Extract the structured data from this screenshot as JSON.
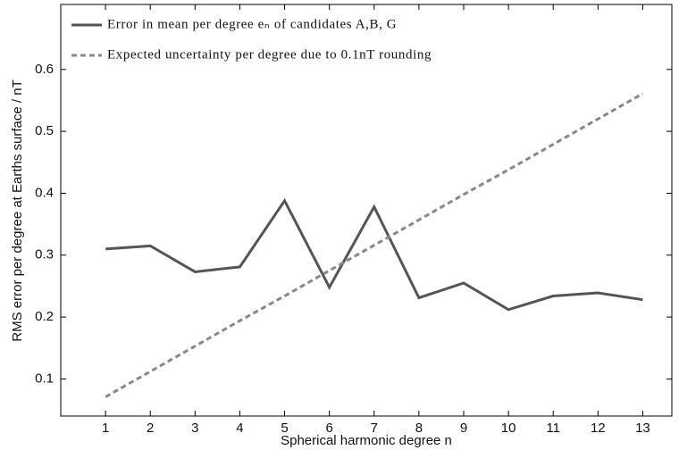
{
  "chart_data": {
    "type": "line",
    "x_label": "Spherical harmonic degree n",
    "y_label": "RMS error per degree at Earths surface / nT",
    "x": [
      1,
      2,
      3,
      4,
      5,
      6,
      7,
      8,
      9,
      10,
      11,
      12,
      13
    ],
    "series": [
      {
        "name": "Error in mean per degree eₙ of candidates A,B, G",
        "color": "#555555",
        "dash": "solid",
        "values": [
          0.31,
          0.315,
          0.273,
          0.281,
          0.388,
          0.248,
          0.378,
          0.231,
          0.255,
          0.212,
          0.234,
          0.239,
          0.228
        ]
      },
      {
        "name": "Expected uncertainty per degree due to 0.1nT rounding",
        "color": "#888888",
        "dash": "dashed",
        "values": [
          0.071,
          0.112,
          0.153,
          0.194,
          0.234,
          0.275,
          0.316,
          0.357,
          0.398,
          0.438,
          0.479,
          0.52,
          0.561
        ]
      }
    ],
    "xlim": [
      0,
      13.65
    ],
    "ylim": [
      0.04,
      0.705
    ],
    "xticks": [
      1,
      2,
      3,
      4,
      5,
      6,
      7,
      8,
      9,
      10,
      11,
      12,
      13
    ],
    "yticks": [
      0.1,
      0.2,
      0.3,
      0.4,
      0.5,
      0.6
    ],
    "legend": "upper left",
    "grid": false
  }
}
